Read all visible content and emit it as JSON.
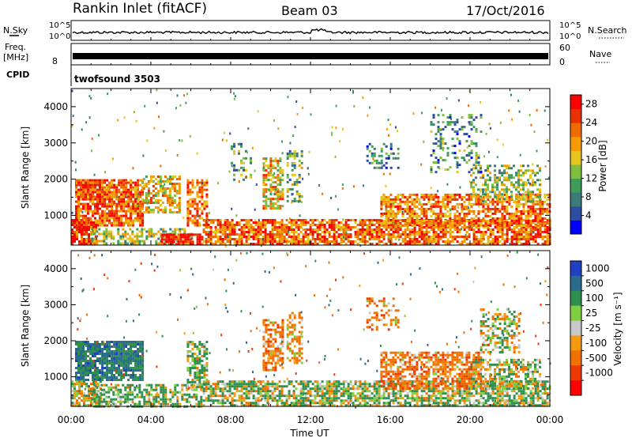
{
  "header": {
    "station": "Rankin Inlet (fitACF)",
    "beam": "Beam 03",
    "date": "17/Oct/2016"
  },
  "status_panel": {
    "nsky_label": "N.Sky",
    "nsky_ticks": [
      "10^5",
      "10^0"
    ],
    "nsearch_label": "N.Search",
    "freq_label": "Freq.",
    "freq_unit": "[MHz]",
    "freq_tick": "8",
    "nave_label": "Nave",
    "nave_ticks": [
      "60",
      "0"
    ],
    "cpid_label": "CPID",
    "cpid_value": "twofsound 3503"
  },
  "colors": {
    "power_scale": [
      "#0000ff",
      "#2c4da0",
      "#3d7a7a",
      "#3f9d5a",
      "#7fbf3f",
      "#e6c61e",
      "#f59a00",
      "#ef6a00",
      "#e83000",
      "#ff0000"
    ],
    "velocity_scale": [
      "#ff0000",
      "#ee3a00",
      "#f07000",
      "#f59a10",
      "#c8c8c8",
      "#7fcf3f",
      "#2f8f4f",
      "#2a6a8a",
      "#1f40c0"
    ]
  },
  "chart_data": [
    {
      "type": "heatmap",
      "name": "power",
      "ylabel": "Slant Range [km]",
      "xlabel": "Time UT",
      "x_ticks": [
        "00:00",
        "04:00",
        "08:00",
        "12:00",
        "16:00",
        "20:00",
        "00:00"
      ],
      "xlim_hours": [
        0,
        24
      ],
      "y_ticks": [
        1000,
        2000,
        3000,
        4000
      ],
      "ylim": [
        180,
        4500
      ],
      "colorbar": {
        "label": "Power [dB]",
        "ticks": [
          4,
          8,
          12,
          16,
          20,
          24,
          28
        ],
        "range": [
          0,
          30
        ]
      },
      "regions": [
        {
          "t": [
            0.2,
            3.6
          ],
          "r": [
            700,
            2000
          ],
          "level": 24,
          "density": 0.85
        },
        {
          "t": [
            0.0,
            1.2
          ],
          "r": [
            200,
            900
          ],
          "level": 26,
          "density": 0.8
        },
        {
          "t": [
            3.6,
            5.4
          ],
          "r": [
            1100,
            2100
          ],
          "level": 18,
          "density": 0.6
        },
        {
          "t": [
            1.0,
            6.0
          ],
          "r": [
            200,
            650
          ],
          "level": 14,
          "density": 0.55
        },
        {
          "t": [
            5.8,
            6.8
          ],
          "r": [
            700,
            2000
          ],
          "level": 22,
          "density": 0.7
        },
        {
          "t": [
            4.5,
            6.6
          ],
          "r": [
            200,
            500
          ],
          "level": 27,
          "density": 0.7
        },
        {
          "t": [
            9.6,
            10.6
          ],
          "r": [
            1200,
            2600
          ],
          "level": 18,
          "density": 0.6
        },
        {
          "t": [
            10.8,
            11.6
          ],
          "r": [
            1400,
            2800
          ],
          "level": 12,
          "density": 0.45
        },
        {
          "t": [
            8.0,
            9.0
          ],
          "r": [
            2000,
            3000
          ],
          "level": 10,
          "density": 0.25
        },
        {
          "t": [
            6.6,
            24.0
          ],
          "r": [
            200,
            900
          ],
          "level": 23,
          "density": 0.75
        },
        {
          "t": [
            15.5,
            24.0
          ],
          "r": [
            700,
            1600
          ],
          "level": 22,
          "density": 0.65
        },
        {
          "t": [
            20.0,
            23.5
          ],
          "r": [
            1400,
            2400
          ],
          "level": 14,
          "density": 0.45
        },
        {
          "t": [
            14.8,
            16.4
          ],
          "r": [
            2300,
            3000
          ],
          "level": 8,
          "density": 0.35
        },
        {
          "t": [
            18.0,
            20.5
          ],
          "r": [
            2200,
            3800
          ],
          "level": 9,
          "density": 0.25
        }
      ]
    },
    {
      "type": "heatmap",
      "name": "velocity",
      "ylabel": "Slant Range [km]",
      "xlabel": "Time UT",
      "x_ticks": [
        "00:00",
        "04:00",
        "08:00",
        "12:00",
        "16:00",
        "20:00",
        "00:00"
      ],
      "xlim_hours": [
        0,
        24
      ],
      "y_ticks": [
        1000,
        2000,
        3000,
        4000
      ],
      "ylim": [
        180,
        4500
      ],
      "colorbar": {
        "label": "Velocity [m s⁻¹]",
        "ticks": [
          "1000",
          "500",
          "100",
          "25",
          "-25",
          "-100",
          "-500",
          "-1000"
        ],
        "range": [
          -1200,
          1200
        ]
      },
      "regions": [
        {
          "t": [
            0.2,
            3.6
          ],
          "r": [
            900,
            2000
          ],
          "level": 600,
          "density": 0.85
        },
        {
          "t": [
            0.0,
            1.5
          ],
          "r": [
            200,
            900
          ],
          "level": 0,
          "density": 0.7
        },
        {
          "t": [
            1.0,
            6.5
          ],
          "r": [
            200,
            800
          ],
          "level": 150,
          "density": 0.55
        },
        {
          "t": [
            5.8,
            6.8
          ],
          "r": [
            700,
            2000
          ],
          "level": 120,
          "density": 0.65
        },
        {
          "t": [
            9.6,
            10.6
          ],
          "r": [
            1200,
            2600
          ],
          "level": -300,
          "density": 0.6
        },
        {
          "t": [
            10.8,
            11.6
          ],
          "r": [
            1400,
            2800
          ],
          "level": -200,
          "density": 0.45
        },
        {
          "t": [
            6.6,
            24.0
          ],
          "r": [
            200,
            900
          ],
          "level": 80,
          "density": 0.7
        },
        {
          "t": [
            15.5,
            20.5
          ],
          "r": [
            700,
            1700
          ],
          "level": -300,
          "density": 0.65
        },
        {
          "t": [
            20.0,
            23.5
          ],
          "r": [
            700,
            1500
          ],
          "level": 60,
          "density": 0.55
        },
        {
          "t": [
            20.5,
            22.5
          ],
          "r": [
            1700,
            2900
          ],
          "level": 0,
          "density": 0.5
        },
        {
          "t": [
            14.8,
            16.4
          ],
          "r": [
            2300,
            3200
          ],
          "level": -300,
          "density": 0.35
        }
      ]
    }
  ]
}
